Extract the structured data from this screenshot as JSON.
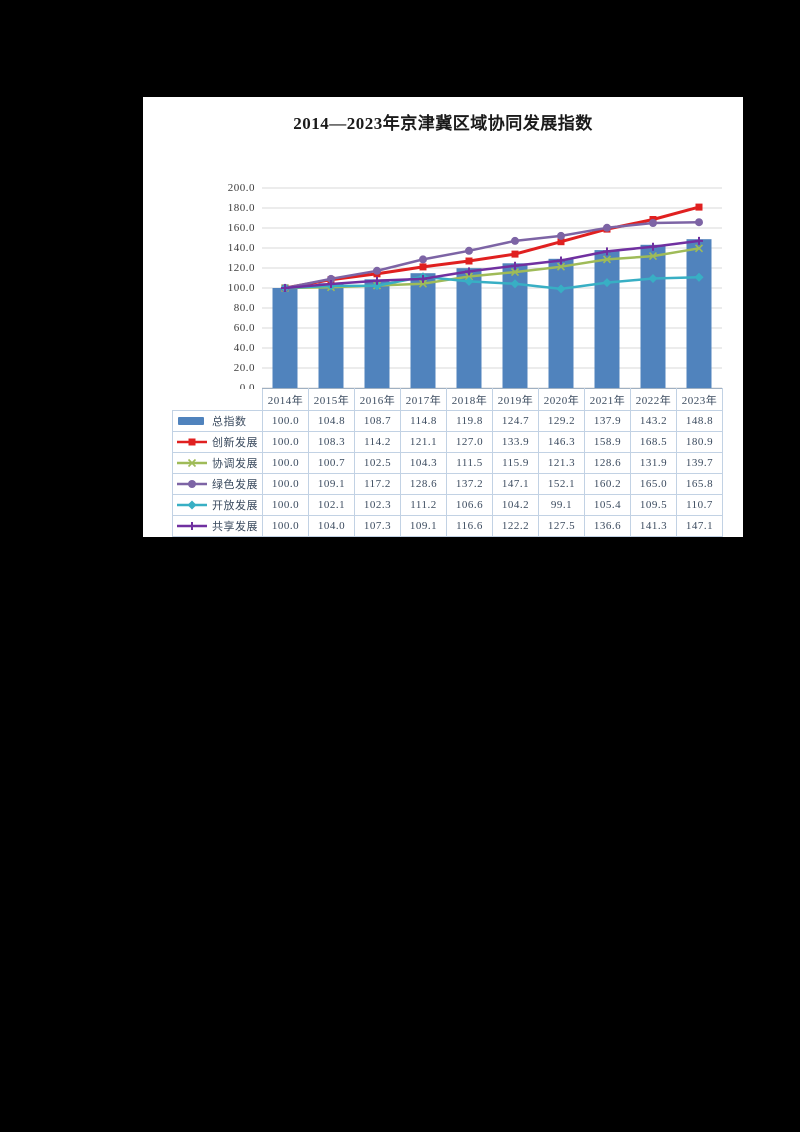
{
  "page": {
    "background_color": "#000000",
    "panel_color": "#ffffff"
  },
  "chart_data": {
    "type": "bar",
    "subtype": "bar-and-line-combo-with-data-table",
    "title": "2014—2023年京津冀区域协同发展指数",
    "categories": [
      "2014年",
      "2015年",
      "2016年",
      "2017年",
      "2018年",
      "2019年",
      "2020年",
      "2021年",
      "2022年",
      "2023年"
    ],
    "series": [
      {
        "name": "总指数",
        "type": "bar",
        "marker": "bar",
        "color": "#5083BD",
        "values": [
          100.0,
          104.8,
          108.7,
          114.8,
          119.8,
          124.7,
          129.2,
          137.9,
          143.2,
          148.8
        ]
      },
      {
        "name": "创新发展",
        "type": "line",
        "marker": "square",
        "color": "#E02020",
        "values": [
          100.0,
          108.3,
          114.2,
          121.1,
          127.0,
          133.9,
          146.3,
          158.9,
          168.5,
          180.9
        ]
      },
      {
        "name": "协调发展",
        "type": "line",
        "marker": "x",
        "color": "#9FBB58",
        "values": [
          100.0,
          100.7,
          102.5,
          104.3,
          111.5,
          115.9,
          121.3,
          128.6,
          131.9,
          139.7
        ]
      },
      {
        "name": "绿色发展",
        "type": "line",
        "marker": "circle",
        "color": "#7D64A5",
        "values": [
          100.0,
          109.1,
          117.2,
          128.6,
          137.2,
          147.1,
          152.1,
          160.2,
          165.0,
          165.8
        ]
      },
      {
        "name": "开放发展",
        "type": "line",
        "marker": "diamond",
        "color": "#38AFC4",
        "values": [
          100.0,
          102.1,
          102.3,
          111.2,
          106.6,
          104.2,
          99.1,
          105.4,
          109.5,
          110.7
        ]
      },
      {
        "name": "共享发展",
        "type": "line",
        "marker": "plus",
        "color": "#7030A0",
        "values": [
          100.0,
          104.0,
          107.3,
          109.1,
          116.6,
          122.2,
          127.5,
          136.6,
          141.3,
          147.1
        ]
      }
    ],
    "ylim": [
      0,
      200
    ],
    "ytick_step": 20,
    "ytick_decimals": 1,
    "grid": true,
    "gridline_color": "#d9d9d9",
    "legend_position": "data-table-left-column"
  }
}
